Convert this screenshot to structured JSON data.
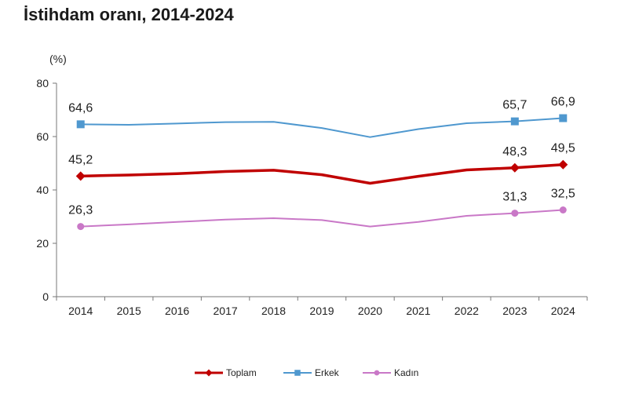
{
  "chart_data": {
    "type": "line",
    "title": "İstihdam oranı, 2014-2024",
    "y_unit": "(%)",
    "xlabel": "",
    "ylabel": "",
    "ylim": [
      0,
      80
    ],
    "yticks": [
      0,
      20,
      40,
      60,
      80
    ],
    "grid": false,
    "legend_position": "bottom",
    "categories": [
      "2014",
      "2015",
      "2016",
      "2017",
      "2018",
      "2019",
      "2020",
      "2021",
      "2022",
      "2023",
      "2024"
    ],
    "series": [
      {
        "name": "Erkek",
        "color": "#4f98cf",
        "marker": "square",
        "values": [
          64.6,
          64.4,
          64.9,
          65.4,
          65.5,
          63.2,
          59.8,
          62.8,
          65.0,
          65.7,
          66.9
        ],
        "labels": [
          "64,6",
          null,
          null,
          null,
          null,
          null,
          null,
          null,
          null,
          "65,7",
          "66,9"
        ]
      },
      {
        "name": "Toplam",
        "color": "#c00000",
        "marker": "diamond",
        "values": [
          45.2,
          45.6,
          46.1,
          46.9,
          47.4,
          45.7,
          42.5,
          45.1,
          47.5,
          48.3,
          49.5
        ],
        "labels": [
          "45,2",
          null,
          null,
          null,
          null,
          null,
          null,
          null,
          null,
          "48,3",
          "49,5"
        ]
      },
      {
        "name": "Kadın",
        "color": "#c978c7",
        "marker": "circle",
        "values": [
          26.3,
          27.1,
          28.0,
          28.9,
          29.4,
          28.7,
          26.3,
          28.0,
          30.3,
          31.3,
          32.5
        ],
        "labels": [
          "26,3",
          null,
          null,
          null,
          null,
          null,
          null,
          null,
          null,
          "31,3",
          "32,5"
        ]
      }
    ],
    "legend_order": [
      "Toplam",
      "Erkek",
      "Kadın"
    ]
  }
}
